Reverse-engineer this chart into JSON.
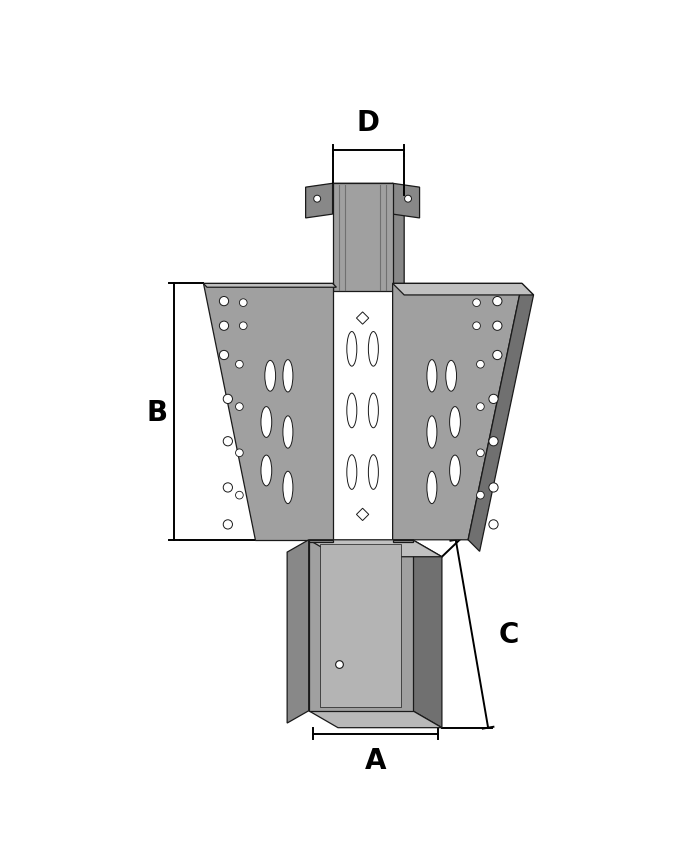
{
  "bg_color": "#ffffff",
  "line_color": "#1a1a1a",
  "metal_main": "#a0a0a0",
  "metal_side": "#888888",
  "metal_dark": "#707070",
  "metal_light": "#c0c0c0",
  "metal_top": "#b8b8b8",
  "metal_inner": "#b4b4b4",
  "dim_color": "#000000",
  "label_A": "A",
  "label_B": "B",
  "label_C": "C",
  "label_D": "D",
  "label_fontsize": 20,
  "dim_linewidth": 1.4
}
